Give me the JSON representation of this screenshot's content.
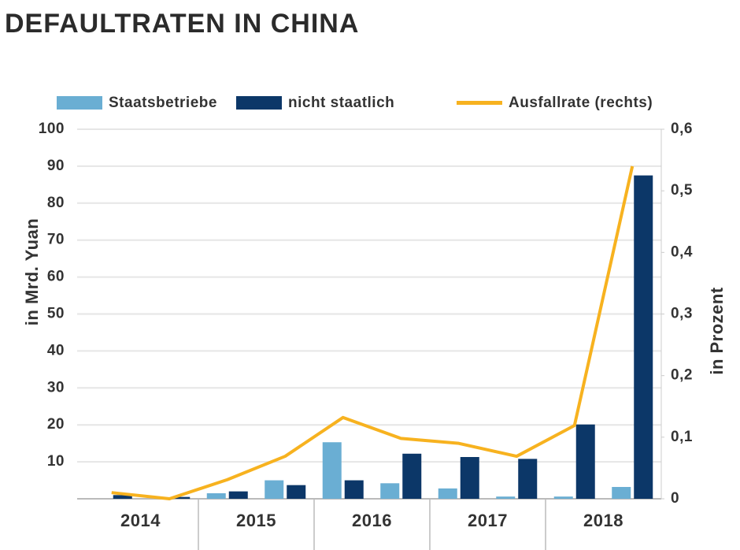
{
  "chart_data": {
    "type": "bar",
    "title": "DEFAULTRATEN IN CHINA",
    "y_label": "in Mrd. Yuan",
    "y2_label": "in Prozent",
    "categories": [
      null,
      null,
      null,
      null,
      null,
      null,
      null,
      null,
      null,
      null
    ],
    "year_labels": [
      "2014",
      "2015",
      "2016",
      "2017",
      "2018"
    ],
    "series": [
      {
        "name": "Staatsbetriebe",
        "color": "#6aaed3",
        "values": [
          0,
          0,
          1.5,
          5,
          15.3,
          4.2,
          2.8,
          0.6,
          0.6,
          3.2
        ]
      },
      {
        "name": "nicht staatlich",
        "color": "#0c3768",
        "values": [
          1,
          0.5,
          2,
          3.7,
          5,
          12.2,
          11.3,
          10.8,
          20.1,
          87.5
        ]
      },
      {
        "name": "Ausfallrate (rechts)",
        "color": "#f7b21f",
        "type": "line",
        "axis": "y2",
        "values": [
          0.01,
          0,
          0.031,
          0.069,
          0.132,
          0.098,
          0.09,
          0.069,
          0.119,
          0.54
        ]
      }
    ],
    "ylim": [
      0,
      100
    ],
    "yticks": [
      10,
      20,
      30,
      40,
      50,
      60,
      70,
      80,
      90,
      100
    ],
    "y2lim": [
      0,
      0.6
    ],
    "y2ticks": [
      0,
      {
        "value": 0.1,
        "label": "0,1"
      },
      {
        "value": 0.2,
        "label": "0,2"
      },
      {
        "value": 0.3,
        "label": "0,3"
      },
      {
        "value": 0.4,
        "label": "0,4"
      },
      {
        "value": 0.5,
        "label": "0,5"
      },
      {
        "value": 0.6,
        "label": "0,6"
      }
    ],
    "grid": true
  }
}
